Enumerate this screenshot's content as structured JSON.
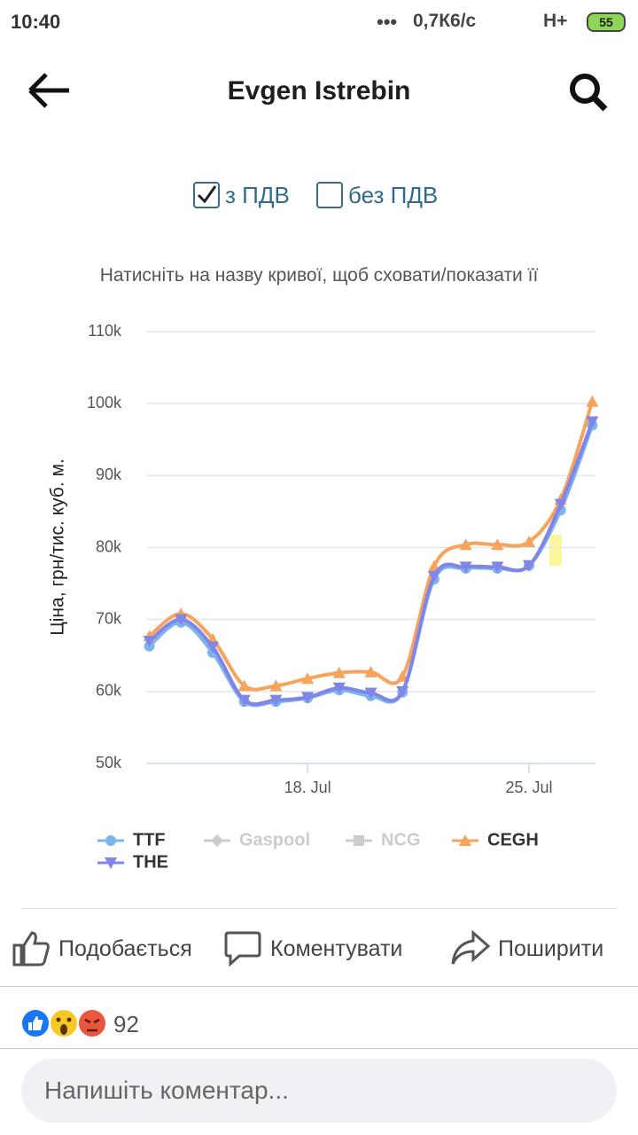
{
  "status_bar": {
    "time": "10:40",
    "speed": "0,7К6/с",
    "network": "H+",
    "battery": "55"
  },
  "header": {
    "title": "Evgen Istrebin"
  },
  "options": [
    {
      "label": "з ПДВ",
      "checked": true
    },
    {
      "label": "без ПДВ",
      "checked": false
    }
  ],
  "chart_data": {
    "type": "line",
    "subtitle": "Натисніть на назву кривої, щоб сховати/показати її",
    "y_label": "Ціна, грн/тис. куб. м.",
    "x": [
      13,
      14,
      15,
      16,
      17,
      18,
      19,
      20,
      21,
      22,
      23,
      24,
      25,
      26,
      27
    ],
    "xlim": [
      12.9,
      27.1
    ],
    "xticks": [
      {
        "value": 18,
        "label": "18. Jul"
      },
      {
        "value": 25,
        "label": "25. Jul"
      }
    ],
    "ylim": [
      50000,
      110000
    ],
    "yticks": [
      {
        "value": 50000,
        "label": "50k"
      },
      {
        "value": 60000,
        "label": "60k"
      },
      {
        "value": 70000,
        "label": "70k"
      },
      {
        "value": 80000,
        "label": "80k"
      },
      {
        "value": 90000,
        "label": "90k"
      },
      {
        "value": 100000,
        "label": "100k"
      },
      {
        "value": 110000,
        "label": "110k"
      }
    ],
    "grid": true,
    "series": [
      {
        "name": "TTF",
        "color": "#7cb5ec",
        "marker": "circle",
        "hidden": false,
        "values": [
          66300,
          69600,
          65400,
          58600,
          58600,
          59100,
          60200,
          59400,
          59900,
          75600,
          77100,
          77100,
          77500,
          85200,
          97000
        ]
      },
      {
        "name": "Gaspool",
        "color": "#cccccc",
        "marker": "diamond",
        "hidden": true,
        "values": [
          null,
          null,
          null,
          null,
          null,
          null,
          null,
          null,
          null,
          null,
          null,
          null,
          null,
          null,
          null
        ]
      },
      {
        "name": "NCG",
        "color": "#cccccc",
        "marker": "square",
        "hidden": true,
        "values": [
          null,
          null,
          null,
          null,
          null,
          null,
          null,
          null,
          null,
          null,
          null,
          null,
          null,
          null,
          null
        ]
      },
      {
        "name": "CEGH",
        "color": "#f7a35c",
        "marker": "triangle",
        "hidden": false,
        "values": [
          67700,
          70800,
          67300,
          60800,
          60800,
          61800,
          62600,
          62700,
          62100,
          77400,
          80400,
          80400,
          80800,
          86700,
          100300
        ]
      },
      {
        "name": "THE",
        "color": "#8085e9",
        "marker": "triangle-down",
        "hidden": false,
        "values": [
          67000,
          70000,
          66200,
          58800,
          58800,
          59200,
          60500,
          59800,
          60000,
          76000,
          77300,
          77300,
          77500,
          86000,
          97500
        ]
      }
    ]
  },
  "actions": [
    "Подобається",
    "Коментувати",
    "Поширити"
  ],
  "reactions": {
    "count": 92
  },
  "comment": {
    "placeholder": "Напишіть коментар..."
  }
}
